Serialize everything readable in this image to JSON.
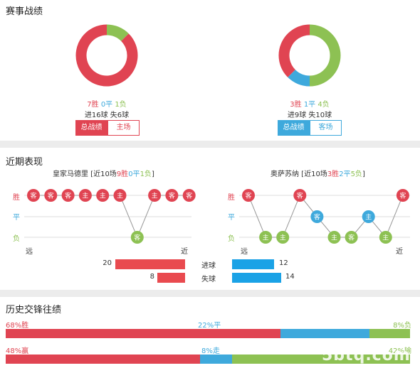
{
  "record": {
    "title": "赛事战绩",
    "left": {
      "wins": "7胜",
      "draws": "0平",
      "losses": "1负",
      "goals": "进16球  失6球",
      "tab_active": "总战绩",
      "tab_other": "主场",
      "donut": {
        "win": 7,
        "draw": 0,
        "loss": 1
      },
      "accent": "#e04452"
    },
    "right": {
      "wins": "3胜",
      "draws": "1平",
      "losses": "4负",
      "goals": "进9球  失10球",
      "tab_active": "总战绩",
      "tab_other": "客场",
      "donut": {
        "win": 3,
        "draw": 1,
        "loss": 4
      },
      "accent": "#3ea9dc"
    }
  },
  "recent": {
    "title": "近期表现",
    "left_team": {
      "name": "皇家马德里",
      "summary_prefix": " [近10场",
      "summary_w": "9胜",
      "summary_d": "0平",
      "summary_l": "1负",
      "summary_suffix": "]",
      "results": [
        "W",
        "W",
        "W",
        "W",
        "W",
        "W",
        "L",
        "W",
        "W",
        "W"
      ],
      "venues": [
        "客",
        "客",
        "客",
        "主",
        "主",
        "主",
        "客",
        "主",
        "客",
        "客"
      ]
    },
    "right_team": {
      "name": "奥萨苏纳",
      "summary_prefix": " [近10场",
      "summary_w": "3胜",
      "summary_d": "2平",
      "summary_l": "5负",
      "summary_suffix": "]",
      "results": [
        "W",
        "L",
        "L",
        "W",
        "D",
        "L",
        "L",
        "D",
        "L",
        "W"
      ],
      "venues": [
        "客",
        "主",
        "主",
        "客",
        "客",
        "主",
        "客",
        "主",
        "主",
        "客"
      ]
    },
    "row_labels": {
      "win": "胜",
      "draw": "平",
      "loss": "负"
    },
    "axis": {
      "far": "远",
      "near": "近"
    },
    "goals_for_label": "进球",
    "goals_against_label": "失球",
    "left_goals_for": 20,
    "left_goals_against": 8,
    "right_goals_for": 12,
    "right_goals_against": 14
  },
  "h2h": {
    "title": "历史交锋往绩",
    "row1": {
      "win_pct": 68,
      "draw_pct": 22,
      "loss_pct": 8,
      "win_label": "68%胜",
      "draw_label": "22%平",
      "loss_label": "8%负"
    },
    "row2": {
      "win_pct": 48,
      "draw_pct": 8,
      "loss_pct": 42,
      "win_label": "48%赢",
      "draw_label": "8%走",
      "loss_label": "42%输"
    }
  },
  "watermark": "5btq.com",
  "colors": {
    "win": "#e04452",
    "draw": "#3ea9dc",
    "loss": "#8dc153",
    "grid": "#dddddd"
  }
}
